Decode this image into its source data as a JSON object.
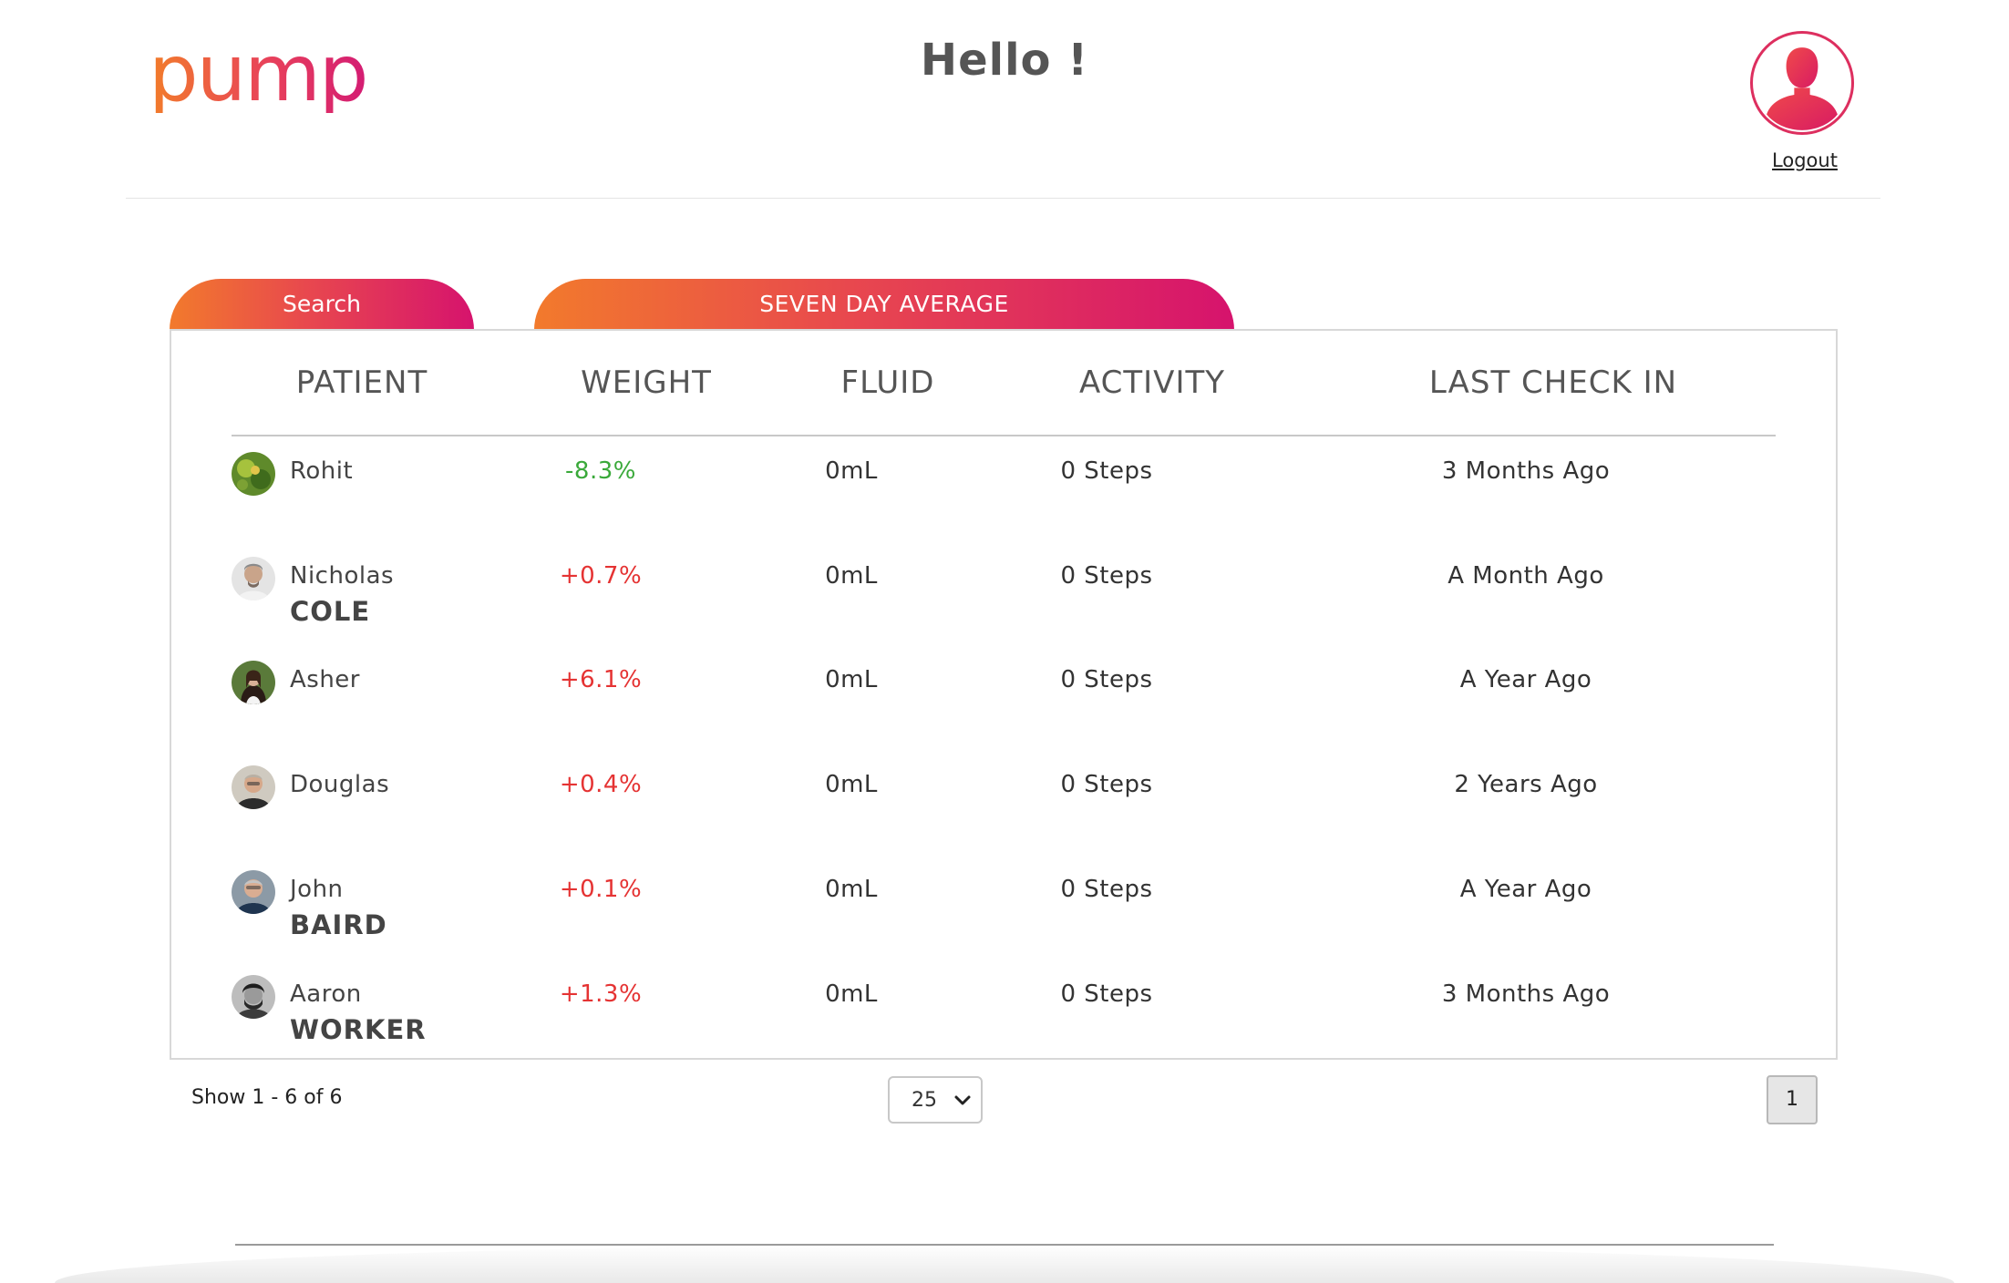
{
  "header": {
    "logo_text": "pump",
    "greeting": "Hello !",
    "logout_label": "Logout",
    "avatar_icon": "user-silhouette-icon"
  },
  "tabs": [
    {
      "label": "Search"
    },
    {
      "label": "SEVEN DAY AVERAGE"
    }
  ],
  "table": {
    "columns": [
      "PATIENT",
      "WEIGHT",
      "FLUID",
      "ACTIVITY",
      "LAST CHECK IN"
    ],
    "rows": [
      {
        "first": "Rohit",
        "last": "",
        "weight": "-8.3%",
        "fluid": "0mL",
        "activity": "0 Steps",
        "last_check_in": "3 Months Ago"
      },
      {
        "first": "Nicholas",
        "last": "COLE",
        "weight": "+0.7%",
        "fluid": "0mL",
        "activity": "0 Steps",
        "last_check_in": "A Month Ago"
      },
      {
        "first": "Asher",
        "last": "",
        "weight": "+6.1%",
        "fluid": "0mL",
        "activity": "0 Steps",
        "last_check_in": "A Year Ago"
      },
      {
        "first": "Douglas",
        "last": "",
        "weight": "+0.4%",
        "fluid": "0mL",
        "activity": "0 Steps",
        "last_check_in": "2 Years Ago"
      },
      {
        "first": "John",
        "last": "BAIRD",
        "weight": "+0.1%",
        "fluid": "0mL",
        "activity": "0 Steps",
        "last_check_in": "A Year Ago"
      },
      {
        "first": "Aaron",
        "last": "WORKER",
        "weight": "+1.3%",
        "fluid": "0mL",
        "activity": "0 Steps",
        "last_check_in": "3 Months Ago"
      }
    ]
  },
  "pagination": {
    "show_text": "Show 1 - 6 of 6",
    "page_size": "25",
    "current_page": "1"
  },
  "colors": {
    "brand_orange": "#f27a2c",
    "brand_magenta": "#d6136d",
    "weight_down": "#3aa93a",
    "weight_up": "#e53333"
  }
}
